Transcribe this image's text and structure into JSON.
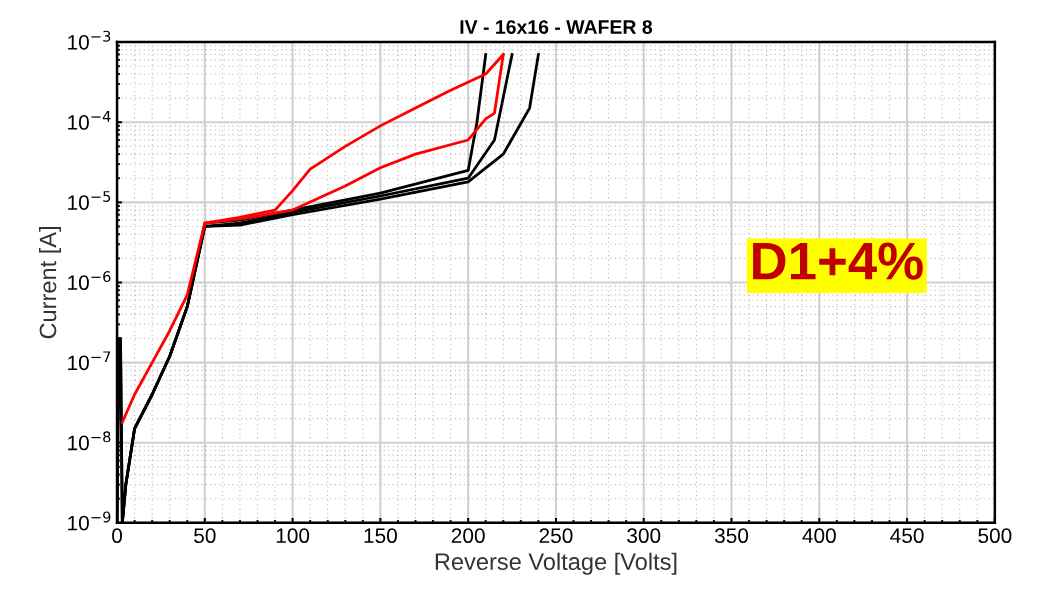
{
  "chart_data": {
    "type": "line",
    "title": "IV - 16x16 - WAFER 8",
    "xlabel": "Reverse Voltage [Volts]",
    "ylabel": "Current [A]",
    "log": "y",
    "grid": true,
    "legend": false,
    "marker": "none",
    "line_style": "solid",
    "xlim": [
      0,
      500
    ],
    "xticks": [
      0,
      50,
      100,
      150,
      200,
      250,
      300,
      350,
      400,
      450,
      500
    ],
    "ylim": [
      1e-09,
      0.001
    ],
    "yticks": [
      {
        "value": 1e-09,
        "label": "10$^{−9}$"
      },
      {
        "value": 1e-08,
        "label": "10$^{−8}$"
      },
      {
        "value": 1e-07,
        "label": "10$^{−7}$"
      },
      {
        "value": 1e-06,
        "label": "10$^{−6}$"
      },
      {
        "value": 1e-05,
        "label": "10$^{−5}$"
      },
      {
        "value": 0.0001,
        "label": "10$^{−4}$"
      },
      {
        "value": 0.001,
        "label": "10$^{−3}$"
      }
    ],
    "annotations": [
      "D1+4%"
    ],
    "series": [
      {
        "color": "#000000",
        "x": [
          0,
          1,
          2,
          3,
          5,
          10,
          20,
          30,
          40,
          50,
          70,
          100,
          150,
          200,
          205,
          210
        ],
        "values": [
          1e-09,
          2e-07,
          2e-07,
          1e-09,
          3e-09,
          1.5e-08,
          4e-08,
          1.2e-07,
          5e-07,
          5.5e-06,
          6e-06,
          8e-06,
          1.3e-05,
          2.5e-05,
          0.0001,
          0.0007
        ]
      },
      {
        "color": "#000000",
        "x": [
          0,
          1,
          2,
          3,
          5,
          10,
          20,
          30,
          40,
          50,
          70,
          100,
          150,
          200,
          215,
          225
        ],
        "values": [
          1e-09,
          1.5e-07,
          1.5e-07,
          1e-09,
          3e-09,
          1.5e-08,
          4e-08,
          1.2e-07,
          5e-07,
          5e-06,
          5.5e-06,
          7.5e-06,
          1.2e-05,
          2e-05,
          6e-05,
          0.0007
        ]
      },
      {
        "color": "#000000",
        "x": [
          3,
          5,
          10,
          20,
          30,
          40,
          50,
          70,
          100,
          150,
          200,
          220,
          235,
          240
        ],
        "values": [
          1e-09,
          3e-09,
          1.5e-08,
          4e-08,
          1.2e-07,
          5e-07,
          5e-06,
          5.2e-06,
          7e-06,
          1.1e-05,
          1.8e-05,
          4e-05,
          0.00015,
          0.0007
        ]
      },
      {
        "color": "#ff0000",
        "x": [
          3,
          10,
          20,
          30,
          40,
          50,
          70,
          90,
          100,
          110,
          130,
          150,
          170,
          190,
          210,
          220
        ],
        "values": [
          1.8e-08,
          4e-08,
          1e-07,
          2.5e-07,
          7e-07,
          5.5e-06,
          6.5e-06,
          8e-06,
          1.4e-05,
          2.6e-05,
          5e-05,
          9e-05,
          0.00015,
          0.00025,
          0.0004,
          0.0007
        ]
      },
      {
        "color": "#ff0000",
        "x": [
          50,
          70,
          100,
          130,
          150,
          170,
          200,
          210,
          215,
          220
        ],
        "values": [
          5.5e-06,
          6.2e-06,
          8e-06,
          1.6e-05,
          2.7e-05,
          4e-05,
          6e-05,
          0.00011,
          0.00013,
          0.0007
        ]
      }
    ]
  }
}
